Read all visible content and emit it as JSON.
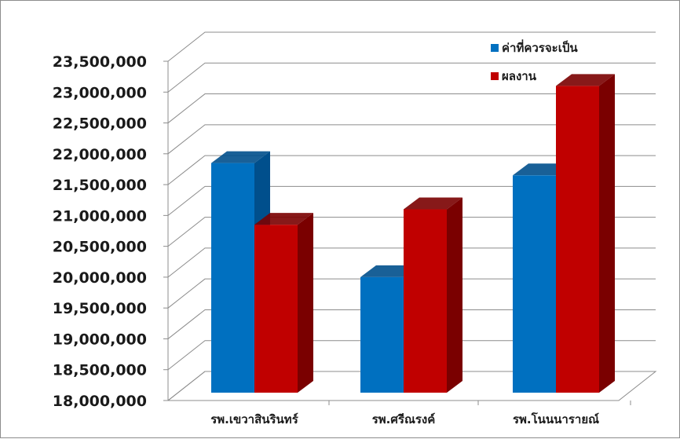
{
  "chart_data": {
    "type": "bar",
    "title": "",
    "xlabel": "",
    "ylabel": "",
    "categories": [
      "รพ.เขวาสินรินทร์",
      "รพ.ศรีณรงค์",
      "รพ.โนนนารายณ์"
    ],
    "series": [
      {
        "name": "ค่าที่ควรจะเป็น",
        "values": [
          21850000,
          20000000,
          21650000
        ],
        "color": "#0070C0",
        "side_color": "#004F8C"
      },
      {
        "name": "ผลงาน",
        "values": [
          20850000,
          21100000,
          23100000
        ],
        "color": "#C00000",
        "side_color": "#7A0000"
      }
    ],
    "ylim": [
      18000000,
      23500000
    ],
    "yticks": [
      "18,000,000",
      "18,500,000",
      "19,000,000",
      "19,500,000",
      "20,000,000",
      "20,500,000",
      "21,000,000",
      "21,500,000",
      "22,000,000",
      "22,500,000",
      "23,000,000",
      "23,500,000"
    ],
    "grid": true,
    "style": "3d-clustered-column",
    "legend_position": "top-right"
  }
}
